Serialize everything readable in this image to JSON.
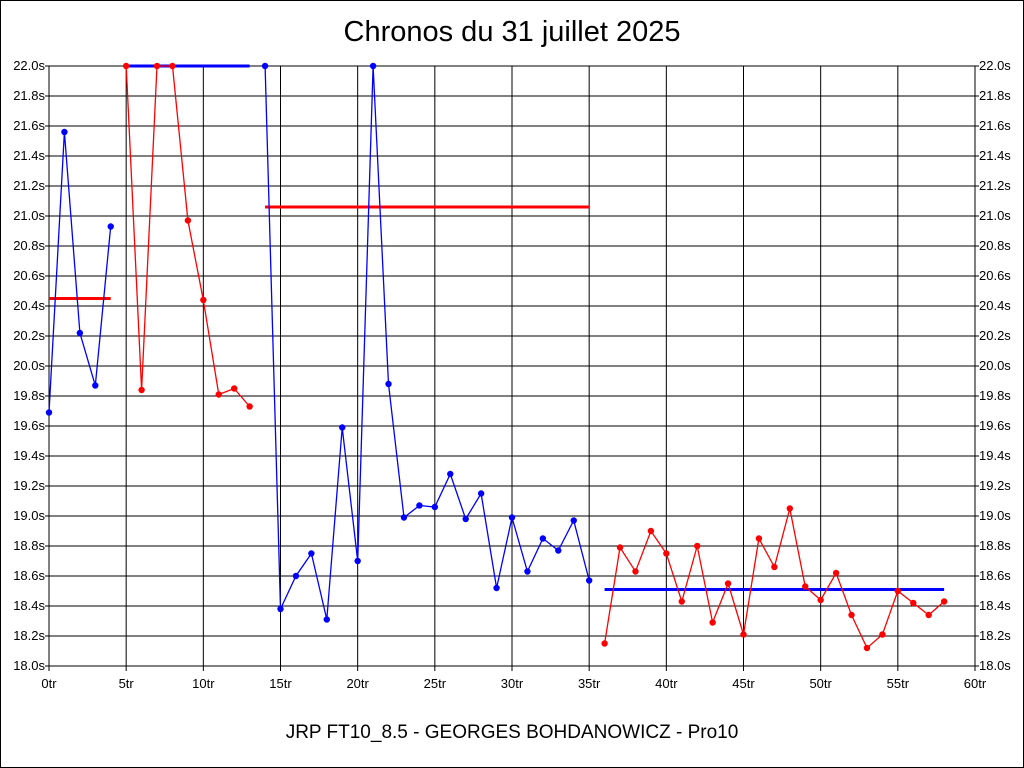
{
  "title": "Chronos du 31 juillet 2025",
  "footer": "JRP FT10_8.5 - GEORGES BOHDANOWICZ - Pro10",
  "chart_data": {
    "type": "line",
    "title": "Chronos du 31 juillet 2025",
    "xlim": [
      0,
      60
    ],
    "ylim": [
      18.0,
      22.0
    ],
    "x_ticks": [
      0,
      5,
      10,
      15,
      20,
      25,
      30,
      35,
      40,
      45,
      50,
      55,
      60
    ],
    "x_tick_labels": [
      "0tr",
      "5tr",
      "10tr",
      "15tr",
      "20tr",
      "25tr",
      "30tr",
      "35tr",
      "40tr",
      "45tr",
      "50tr",
      "55tr",
      "60tr"
    ],
    "y_ticks": [
      18.0,
      18.2,
      18.4,
      18.6,
      18.8,
      19.0,
      19.2,
      19.4,
      19.6,
      19.8,
      20.0,
      20.2,
      20.4,
      20.6,
      20.8,
      21.0,
      21.2,
      21.4,
      21.6,
      21.8,
      22.0
    ],
    "y_tick_labels": [
      "18.0s",
      "18.2s",
      "18.4s",
      "18.6s",
      "18.8s",
      "19.0s",
      "19.2s",
      "19.4s",
      "19.6s",
      "19.8s",
      "20.0s",
      "20.2s",
      "20.4s",
      "20.6s",
      "20.8s",
      "21.0s",
      "21.2s",
      "21.4s",
      "21.6s",
      "21.8s",
      "22.0s"
    ],
    "grid": true,
    "colors": {
      "blue": "#0000ff",
      "red": "#ff0000"
    },
    "series": [
      {
        "color": "#0000ff",
        "points": [
          [
            0,
            19.69
          ],
          [
            1,
            21.56
          ],
          [
            2,
            20.22
          ],
          [
            3,
            19.87
          ],
          [
            4,
            20.93
          ]
        ]
      },
      {
        "color": "#ff0000",
        "points": [
          [
            5,
            22.0
          ],
          [
            6,
            19.84
          ],
          [
            7,
            22.0
          ],
          [
            8,
            22.0
          ],
          [
            9,
            20.97
          ],
          [
            10,
            20.44
          ],
          [
            11,
            19.81
          ],
          [
            12,
            19.85
          ],
          [
            13,
            19.73
          ]
        ]
      },
      {
        "color": "#0000ff",
        "points": [
          [
            14,
            22.0
          ],
          [
            15,
            18.38
          ],
          [
            16,
            18.6
          ],
          [
            17,
            18.75
          ],
          [
            18,
            18.31
          ],
          [
            19,
            19.59
          ],
          [
            20,
            18.7
          ],
          [
            21,
            22.0
          ],
          [
            22,
            19.88
          ],
          [
            23,
            18.99
          ],
          [
            24,
            19.07
          ],
          [
            25,
            19.06
          ],
          [
            26,
            19.28
          ],
          [
            27,
            18.98
          ],
          [
            28,
            19.15
          ],
          [
            29,
            18.52
          ],
          [
            30,
            18.99
          ],
          [
            31,
            18.63
          ],
          [
            32,
            18.85
          ],
          [
            33,
            18.77
          ],
          [
            34,
            18.97
          ],
          [
            35,
            18.57
          ]
        ]
      },
      {
        "color": "#ff0000",
        "points": [
          [
            36,
            18.15
          ],
          [
            37,
            18.79
          ],
          [
            38,
            18.63
          ],
          [
            39,
            18.9
          ],
          [
            40,
            18.75
          ],
          [
            41,
            18.43
          ],
          [
            42,
            18.8
          ],
          [
            43,
            18.29
          ],
          [
            44,
            18.55
          ],
          [
            45,
            18.21
          ],
          [
            46,
            18.85
          ],
          [
            47,
            18.66
          ],
          [
            48,
            19.05
          ],
          [
            49,
            18.53
          ],
          [
            50,
            18.44
          ],
          [
            51,
            18.62
          ],
          [
            52,
            18.34
          ],
          [
            53,
            18.12
          ],
          [
            54,
            18.21
          ],
          [
            55,
            18.5
          ],
          [
            56,
            18.42
          ],
          [
            57,
            18.34
          ],
          [
            58,
            18.43
          ]
        ]
      }
    ],
    "averages": [
      {
        "color": "#ff0000",
        "x": [
          0,
          4
        ],
        "y": 20.45
      },
      {
        "color": "#0000ff",
        "x": [
          5,
          13
        ],
        "y": 22.0
      },
      {
        "color": "#ff0000",
        "x": [
          14,
          35
        ],
        "y": 21.06
      },
      {
        "color": "#0000ff",
        "x": [
          36,
          58
        ],
        "y": 18.51
      }
    ]
  }
}
